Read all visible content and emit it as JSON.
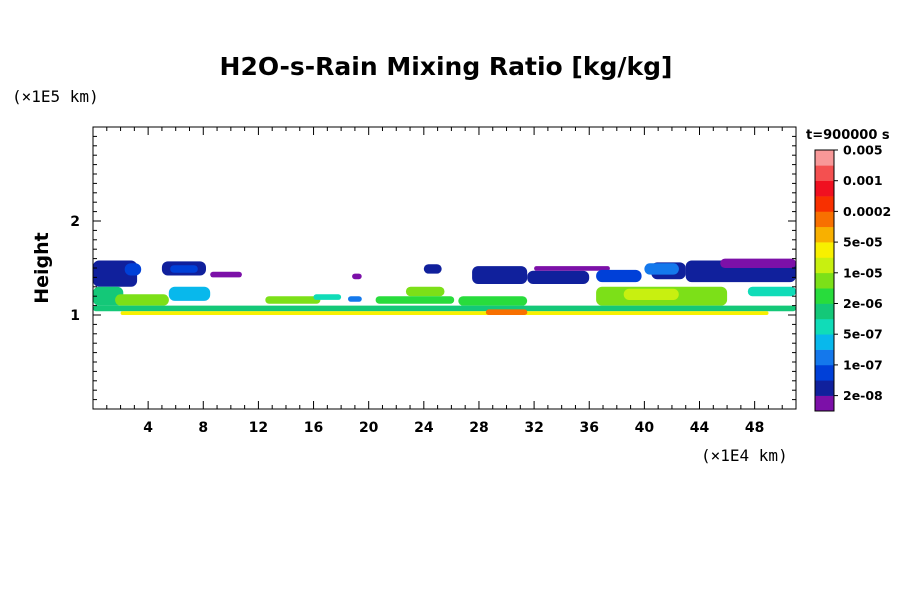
{
  "chart_data": {
    "type": "heatmap",
    "title": "H2O-s-Rain Mixing Ratio [kg/kg]",
    "xlabel": "",
    "ylabel": "Height",
    "x_unit": "(×1E4 km)",
    "y_unit": "(×1E5 km)",
    "time_label": "t=900000 s",
    "xlim": [
      0,
      51
    ],
    "ylim": [
      0,
      3
    ],
    "x_ticks": [
      4,
      8,
      12,
      16,
      20,
      24,
      28,
      32,
      36,
      40,
      44,
      48
    ],
    "x_tick_labels": [
      "4",
      "8",
      "12",
      "16",
      "20",
      "24",
      "28",
      "32",
      "36",
      "40",
      "44",
      "48"
    ],
    "y_ticks": [
      1,
      2
    ],
    "y_tick_labels": [
      "1",
      "2"
    ],
    "colorbar": {
      "levels": [
        "2e-08",
        "1e-07",
        "5e-07",
        "2e-06",
        "1e-05",
        "5e-05",
        "0.0002",
        "0.001",
        "0.005"
      ],
      "colors": [
        "#7c10a8",
        "#10209c",
        "#0040d8",
        "#1478ec",
        "#08b8ec",
        "#10dcb8",
        "#14c878",
        "#28dc3c",
        "#7ce018",
        "#c8f010",
        "#f8f000",
        "#f8b000",
        "#f87000",
        "#f83000",
        "#f01020",
        "#f45050",
        "#f89898"
      ]
    },
    "regions": [
      {
        "x0": 0.0,
        "x1": 3.2,
        "y0": 1.3,
        "y1": 1.58,
        "level": 1
      },
      {
        "x0": 2.3,
        "x1": 3.5,
        "y0": 1.42,
        "y1": 1.55,
        "level": 2
      },
      {
        "x0": 0.0,
        "x1": 2.2,
        "y0": 1.1,
        "y1": 1.3,
        "level": 6
      },
      {
        "x0": 1.6,
        "x1": 5.5,
        "y0": 1.1,
        "y1": 1.22,
        "level": 8
      },
      {
        "x0": 5.0,
        "x1": 8.2,
        "y0": 1.42,
        "y1": 1.57,
        "level": 1
      },
      {
        "x0": 5.6,
        "x1": 7.6,
        "y0": 1.45,
        "y1": 1.53,
        "level": 2
      },
      {
        "x0": 8.5,
        "x1": 10.8,
        "y0": 1.4,
        "y1": 1.46,
        "level": 0
      },
      {
        "x0": 5.5,
        "x1": 8.5,
        "y0": 1.15,
        "y1": 1.3,
        "level": 4
      },
      {
        "x0": 12.5,
        "x1": 16.5,
        "y0": 1.12,
        "y1": 1.2,
        "level": 8
      },
      {
        "x0": 16.0,
        "x1": 18.0,
        "y0": 1.16,
        "y1": 1.22,
        "level": 5
      },
      {
        "x0": 18.5,
        "x1": 19.5,
        "y0": 1.14,
        "y1": 1.2,
        "level": 3
      },
      {
        "x0": 22.7,
        "x1": 25.5,
        "y0": 1.2,
        "y1": 1.3,
        "level": 8
      },
      {
        "x0": 20.5,
        "x1": 26.2,
        "y0": 1.12,
        "y1": 1.2,
        "level": 7
      },
      {
        "x0": 24.0,
        "x1": 25.3,
        "y0": 1.44,
        "y1": 1.54,
        "level": 1
      },
      {
        "x0": 18.8,
        "x1": 19.5,
        "y0": 1.38,
        "y1": 1.44,
        "level": 0
      },
      {
        "x0": 26.5,
        "x1": 31.5,
        "y0": 1.1,
        "y1": 1.2,
        "level": 7
      },
      {
        "x0": 27.5,
        "x1": 31.5,
        "y0": 1.33,
        "y1": 1.52,
        "level": 1
      },
      {
        "x0": 31.5,
        "x1": 36.0,
        "y0": 1.33,
        "y1": 1.47,
        "level": 1
      },
      {
        "x0": 32.0,
        "x1": 37.5,
        "y0": 1.47,
        "y1": 1.52,
        "level": 0
      },
      {
        "x0": 36.5,
        "x1": 39.8,
        "y0": 1.35,
        "y1": 1.48,
        "level": 2
      },
      {
        "x0": 36.5,
        "x1": 46.0,
        "y0": 1.1,
        "y1": 1.3,
        "level": 8
      },
      {
        "x0": 38.5,
        "x1": 42.5,
        "y0": 1.16,
        "y1": 1.28,
        "level": 9
      },
      {
        "x0": 40.5,
        "x1": 43.0,
        "y0": 1.38,
        "y1": 1.56,
        "level": 1
      },
      {
        "x0": 40.0,
        "x1": 42.5,
        "y0": 1.43,
        "y1": 1.55,
        "level": 3
      },
      {
        "x0": 43.0,
        "x1": 51.0,
        "y0": 1.35,
        "y1": 1.58,
        "level": 1
      },
      {
        "x0": 45.5,
        "x1": 51.0,
        "y0": 1.5,
        "y1": 1.6,
        "level": 0
      },
      {
        "x0": 47.5,
        "x1": 51.0,
        "y0": 1.2,
        "y1": 1.3,
        "level": 5
      },
      {
        "x0": 0.0,
        "x1": 51.0,
        "y0": 1.04,
        "y1": 1.1,
        "level": 6
      },
      {
        "x0": 2.0,
        "x1": 49.0,
        "y0": 1.0,
        "y1": 1.04,
        "level": 10
      },
      {
        "x0": 28.5,
        "x1": 31.5,
        "y0": 1.0,
        "y1": 1.06,
        "level": 12
      }
    ]
  }
}
